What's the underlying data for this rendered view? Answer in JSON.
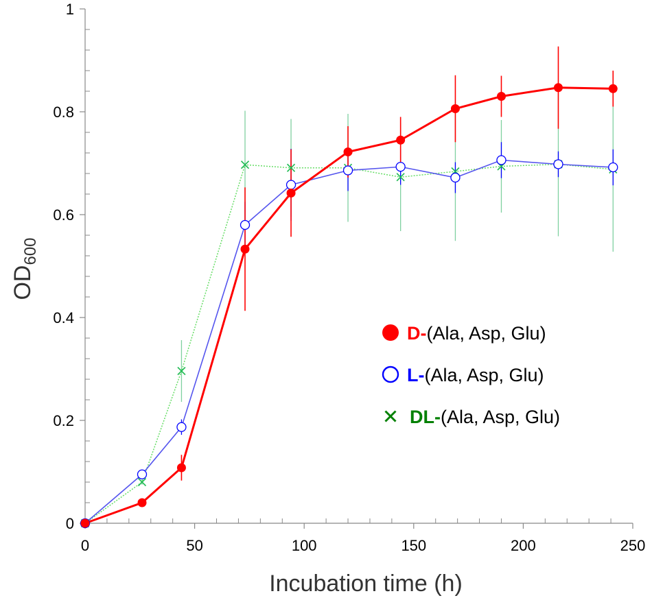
{
  "chart_data": {
    "type": "line",
    "title": "",
    "xlabel": "Incubation time (h)",
    "ylabel": {
      "main": "OD",
      "sub": "600"
    },
    "xlim": [
      0,
      250
    ],
    "ylim": [
      0,
      1
    ],
    "xticks": [
      0,
      50,
      100,
      150,
      200,
      250
    ],
    "yticks": [
      0,
      0.2,
      0.4,
      0.6,
      0.8,
      1
    ],
    "xtick_labels": [
      "0",
      "50",
      "100",
      "150",
      "200",
      "250"
    ],
    "ytick_labels": [
      "0",
      "0.2",
      "0.4",
      "0.6",
      "0.8",
      "1"
    ],
    "grid": false,
    "legend_position": "center-right",
    "series": [
      {
        "name": "D-(Ala, Asp, Glu)",
        "legend_prefix": "D-",
        "legend_rest": "(Ala, Asp, Glu)",
        "color": "#ff0000",
        "marker": "filled-circle",
        "x": [
          0,
          26,
          44,
          73,
          94,
          120,
          144,
          169,
          190,
          216,
          241
        ],
        "y": [
          0,
          0.04,
          0.108,
          0.533,
          0.642,
          0.722,
          0.745,
          0.806,
          0.83,
          0.847,
          0.845
        ],
        "err": [
          0,
          0.005,
          0.025,
          0.12,
          0.085,
          0.05,
          0.045,
          0.065,
          0.04,
          0.08,
          0.035
        ]
      },
      {
        "name": "L-(Ala, Asp, Glu)",
        "legend_prefix": "L-",
        "legend_rest": "(Ala, Asp, Glu)",
        "color": "#0000ff",
        "marker": "open-circle",
        "x": [
          0,
          26,
          44,
          73,
          94,
          120,
          144,
          169,
          190,
          216,
          241
        ],
        "y": [
          0,
          0.095,
          0.187,
          0.58,
          0.658,
          0.686,
          0.693,
          0.672,
          0.706,
          0.698,
          0.692
        ],
        "err": [
          0,
          0.005,
          0.015,
          0.045,
          0.07,
          0.04,
          0.035,
          0.03,
          0.035,
          0.025,
          0.035
        ]
      },
      {
        "name": "DL-(Ala, Asp, Glu)",
        "legend_prefix": "DL-",
        "legend_rest": "(Ala, Asp, Glu)",
        "color": "#008000",
        "line_color": "#66dd66",
        "marker": "x",
        "x": [
          0,
          26,
          44,
          73,
          94,
          120,
          144,
          169,
          190,
          216,
          241
        ],
        "y": [
          0,
          0.08,
          0.296,
          0.697,
          0.691,
          0.691,
          0.673,
          0.684,
          0.694,
          0.698,
          0.688
        ],
        "err": [
          0,
          0.005,
          0.06,
          0.105,
          0.095,
          0.105,
          0.105,
          0.135,
          0.09,
          0.14,
          0.16
        ]
      }
    ]
  }
}
